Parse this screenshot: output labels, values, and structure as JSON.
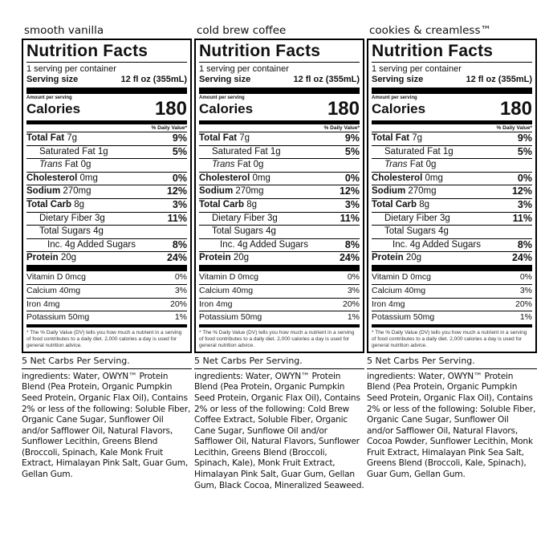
{
  "panels": [
    {
      "flavor": "smooth vanilla",
      "title": "Nutrition Facts",
      "servings": "1 serving per container",
      "serving_size_label": "Serving size",
      "serving_size_value": "12 fl oz (355mL)",
      "amount_per_serving": "Amount per serving",
      "calories_label": "Calories",
      "calories": "180",
      "dv_header": "% Daily Value*",
      "total_fat": {
        "label": "Total Fat",
        "amount": "7g",
        "pct": "9%"
      },
      "sat_fat": {
        "label": "Saturated Fat",
        "amount": "1g",
        "pct": "5%"
      },
      "trans_fat": {
        "label_italic": "Trans",
        "label": "Fat",
        "amount": "0g"
      },
      "cholesterol": {
        "label": "Cholesterol",
        "amount": "0mg",
        "pct": "0%"
      },
      "sodium": {
        "label": "Sodium",
        "amount": "270mg",
        "pct": "12%"
      },
      "total_carb": {
        "label": "Total Carb",
        "amount": "8g",
        "pct": "3%"
      },
      "fiber": {
        "label": "Dietary Fiber",
        "amount": "3g",
        "pct": "11%"
      },
      "sugars": {
        "label": "Total Sugars",
        "amount": "4g"
      },
      "added_sugars": {
        "label": "Inc. 4g Added Sugars",
        "pct": "8%"
      },
      "protein": {
        "label": "Protein",
        "amount": "20g",
        "pct": "24%"
      },
      "vitd": {
        "label": "Vitamin D 0mcg",
        "pct": "0%"
      },
      "calcium": {
        "label": "Calcium 40mg",
        "pct": "3%"
      },
      "iron": {
        "label": "Iron 4mg",
        "pct": "20%"
      },
      "potassium": {
        "label": "Potassium 50mg",
        "pct": "1%"
      },
      "footnote": "* The % Daily Value (DV) tells you how much a nutrient in a serving of food contributes to a daily diet. 2,000 calories a day is used for general nutrition advice.",
      "net_carbs": "5 Net Carbs Per Serving.",
      "ingredients": "ingredients: Water, OWYN™ Protein Blend (Pea Protein, Organic Pumpkin Seed Protein, Organic Flax Oil), Contains 2% or less of the following: Soluble Fiber, Organic Cane Sugar, Sunflower Oil and/or Safflower Oil, Natural Flavors, Sunflower Lecithin, Greens Blend (Broccoli, Spinach, Kale Monk Fruit Extract, Himalayan Pink Salt, Guar Gum, Gellan Gum."
    },
    {
      "flavor": "cold brew coffee",
      "title": "Nutrition Facts",
      "servings": "1 serving per container",
      "serving_size_label": "Serving size",
      "serving_size_value": "12 fl oz (355mL)",
      "amount_per_serving": "Amount per serving",
      "calories_label": "Calories",
      "calories": "180",
      "dv_header": "% Daily Value*",
      "total_fat": {
        "label": "Total Fat",
        "amount": "7g",
        "pct": "9%"
      },
      "sat_fat": {
        "label": "Saturated Fat",
        "amount": "1g",
        "pct": "5%"
      },
      "trans_fat": {
        "label_italic": "Trans",
        "label": "Fat",
        "amount": "0g"
      },
      "cholesterol": {
        "label": "Cholesterol",
        "amount": "0mg",
        "pct": "0%"
      },
      "sodium": {
        "label": "Sodium",
        "amount": "270mg",
        "pct": "12%"
      },
      "total_carb": {
        "label": "Total Carb",
        "amount": "8g",
        "pct": "3%"
      },
      "fiber": {
        "label": "Dietary Fiber",
        "amount": "3g",
        "pct": "11%"
      },
      "sugars": {
        "label": "Total Sugars",
        "amount": "4g"
      },
      "added_sugars": {
        "label": "Inc. 4g Added Sugars",
        "pct": "8%"
      },
      "protein": {
        "label": "Protein",
        "amount": "20g",
        "pct": "24%"
      },
      "vitd": {
        "label": "Vitamin D 0mcg",
        "pct": "0%"
      },
      "calcium": {
        "label": "Calcium 40mg",
        "pct": "3%"
      },
      "iron": {
        "label": "Iron 4mg",
        "pct": "20%"
      },
      "potassium": {
        "label": "Potassium 50mg",
        "pct": "1%"
      },
      "footnote": "* The % Daily Value (DV) tells you how much a nutrient in a serving of food contributes to a daily diet. 2,000 calories a day is used for general nutrition advice.",
      "net_carbs": "5 Net Carbs Per Serving.",
      "ingredients": "ingredients: Water, OWYN™ Protein Blend (Pea Protein, Organic Pumpkin Seed Protein, Organic Flax Oil), Contains 2% or less of the following: Cold Brew Coffee Extract, Soluble Fiber, Organic Cane Sugar, Sunflowe Oil and/or Safflower Oil, Natural Flavors, Sunflower Lecithin, Greens Blend (Broccoli, Spinach, Kale), Monk Fruit Extract, Himalayan Pink Salt, Guar Gum, Gellan Gum, Black Cocoa, Mineralized Seaweed."
    },
    {
      "flavor": "cookies & creamless™",
      "title": "Nutrition Facts",
      "servings": "1 serving per container",
      "serving_size_label": "Serving size",
      "serving_size_value": "12 fl oz (355mL)",
      "amount_per_serving": "Amount per serving",
      "calories_label": "Calories",
      "calories": "180",
      "dv_header": "% Daily Value*",
      "total_fat": {
        "label": "Total Fat",
        "amount": "7g",
        "pct": "9%"
      },
      "sat_fat": {
        "label": "Saturated Fat",
        "amount": "1g",
        "pct": "5%"
      },
      "trans_fat": {
        "label_italic": "Trans",
        "label": "Fat",
        "amount": "0g"
      },
      "cholesterol": {
        "label": "Cholesterol",
        "amount": "0mg",
        "pct": "0%"
      },
      "sodium": {
        "label": "Sodium",
        "amount": "270mg",
        "pct": "12%"
      },
      "total_carb": {
        "label": "Total Carb",
        "amount": "8g",
        "pct": "3%"
      },
      "fiber": {
        "label": "Dietary Fiber",
        "amount": "3g",
        "pct": "11%"
      },
      "sugars": {
        "label": "Total Sugars",
        "amount": "4g"
      },
      "added_sugars": {
        "label": "Inc. 4g Added Sugars",
        "pct": "8%"
      },
      "protein": {
        "label": "Protein",
        "amount": "20g",
        "pct": "24%"
      },
      "vitd": {
        "label": "Vitamin D 0mcg",
        "pct": "0%"
      },
      "calcium": {
        "label": "Calcium 40mg",
        "pct": "3%"
      },
      "iron": {
        "label": "Iron 4mg",
        "pct": "20%"
      },
      "potassium": {
        "label": "Potassium 50mg",
        "pct": "1%"
      },
      "footnote": "* The % Daily Value (DV) tells you how much a nutrient in a serving of food contributes to a daily diet. 2,000 calories a day is used for general nutrition advice.",
      "net_carbs": "5 Net Carbs Per Serving.",
      "ingredients": "ingredients: Water, OWYN™ Protein Blend (Pea Protein, Organic Pumpkin Seed Protein, Organic Flax Oil), Contains 2% or less of the following: Soluble Fiber, Organic Cane Sugar, Sunflower Oil and/or Safflower Oil, Natural Flavors, Cocoa Powder, Sunflower Lecithin, Monk Fruit Extract, Himalayan Pink Sea Salt, Greens Blend (Broccoli, Kale, Spinach), Guar Gum, Gellan Gum."
    }
  ]
}
